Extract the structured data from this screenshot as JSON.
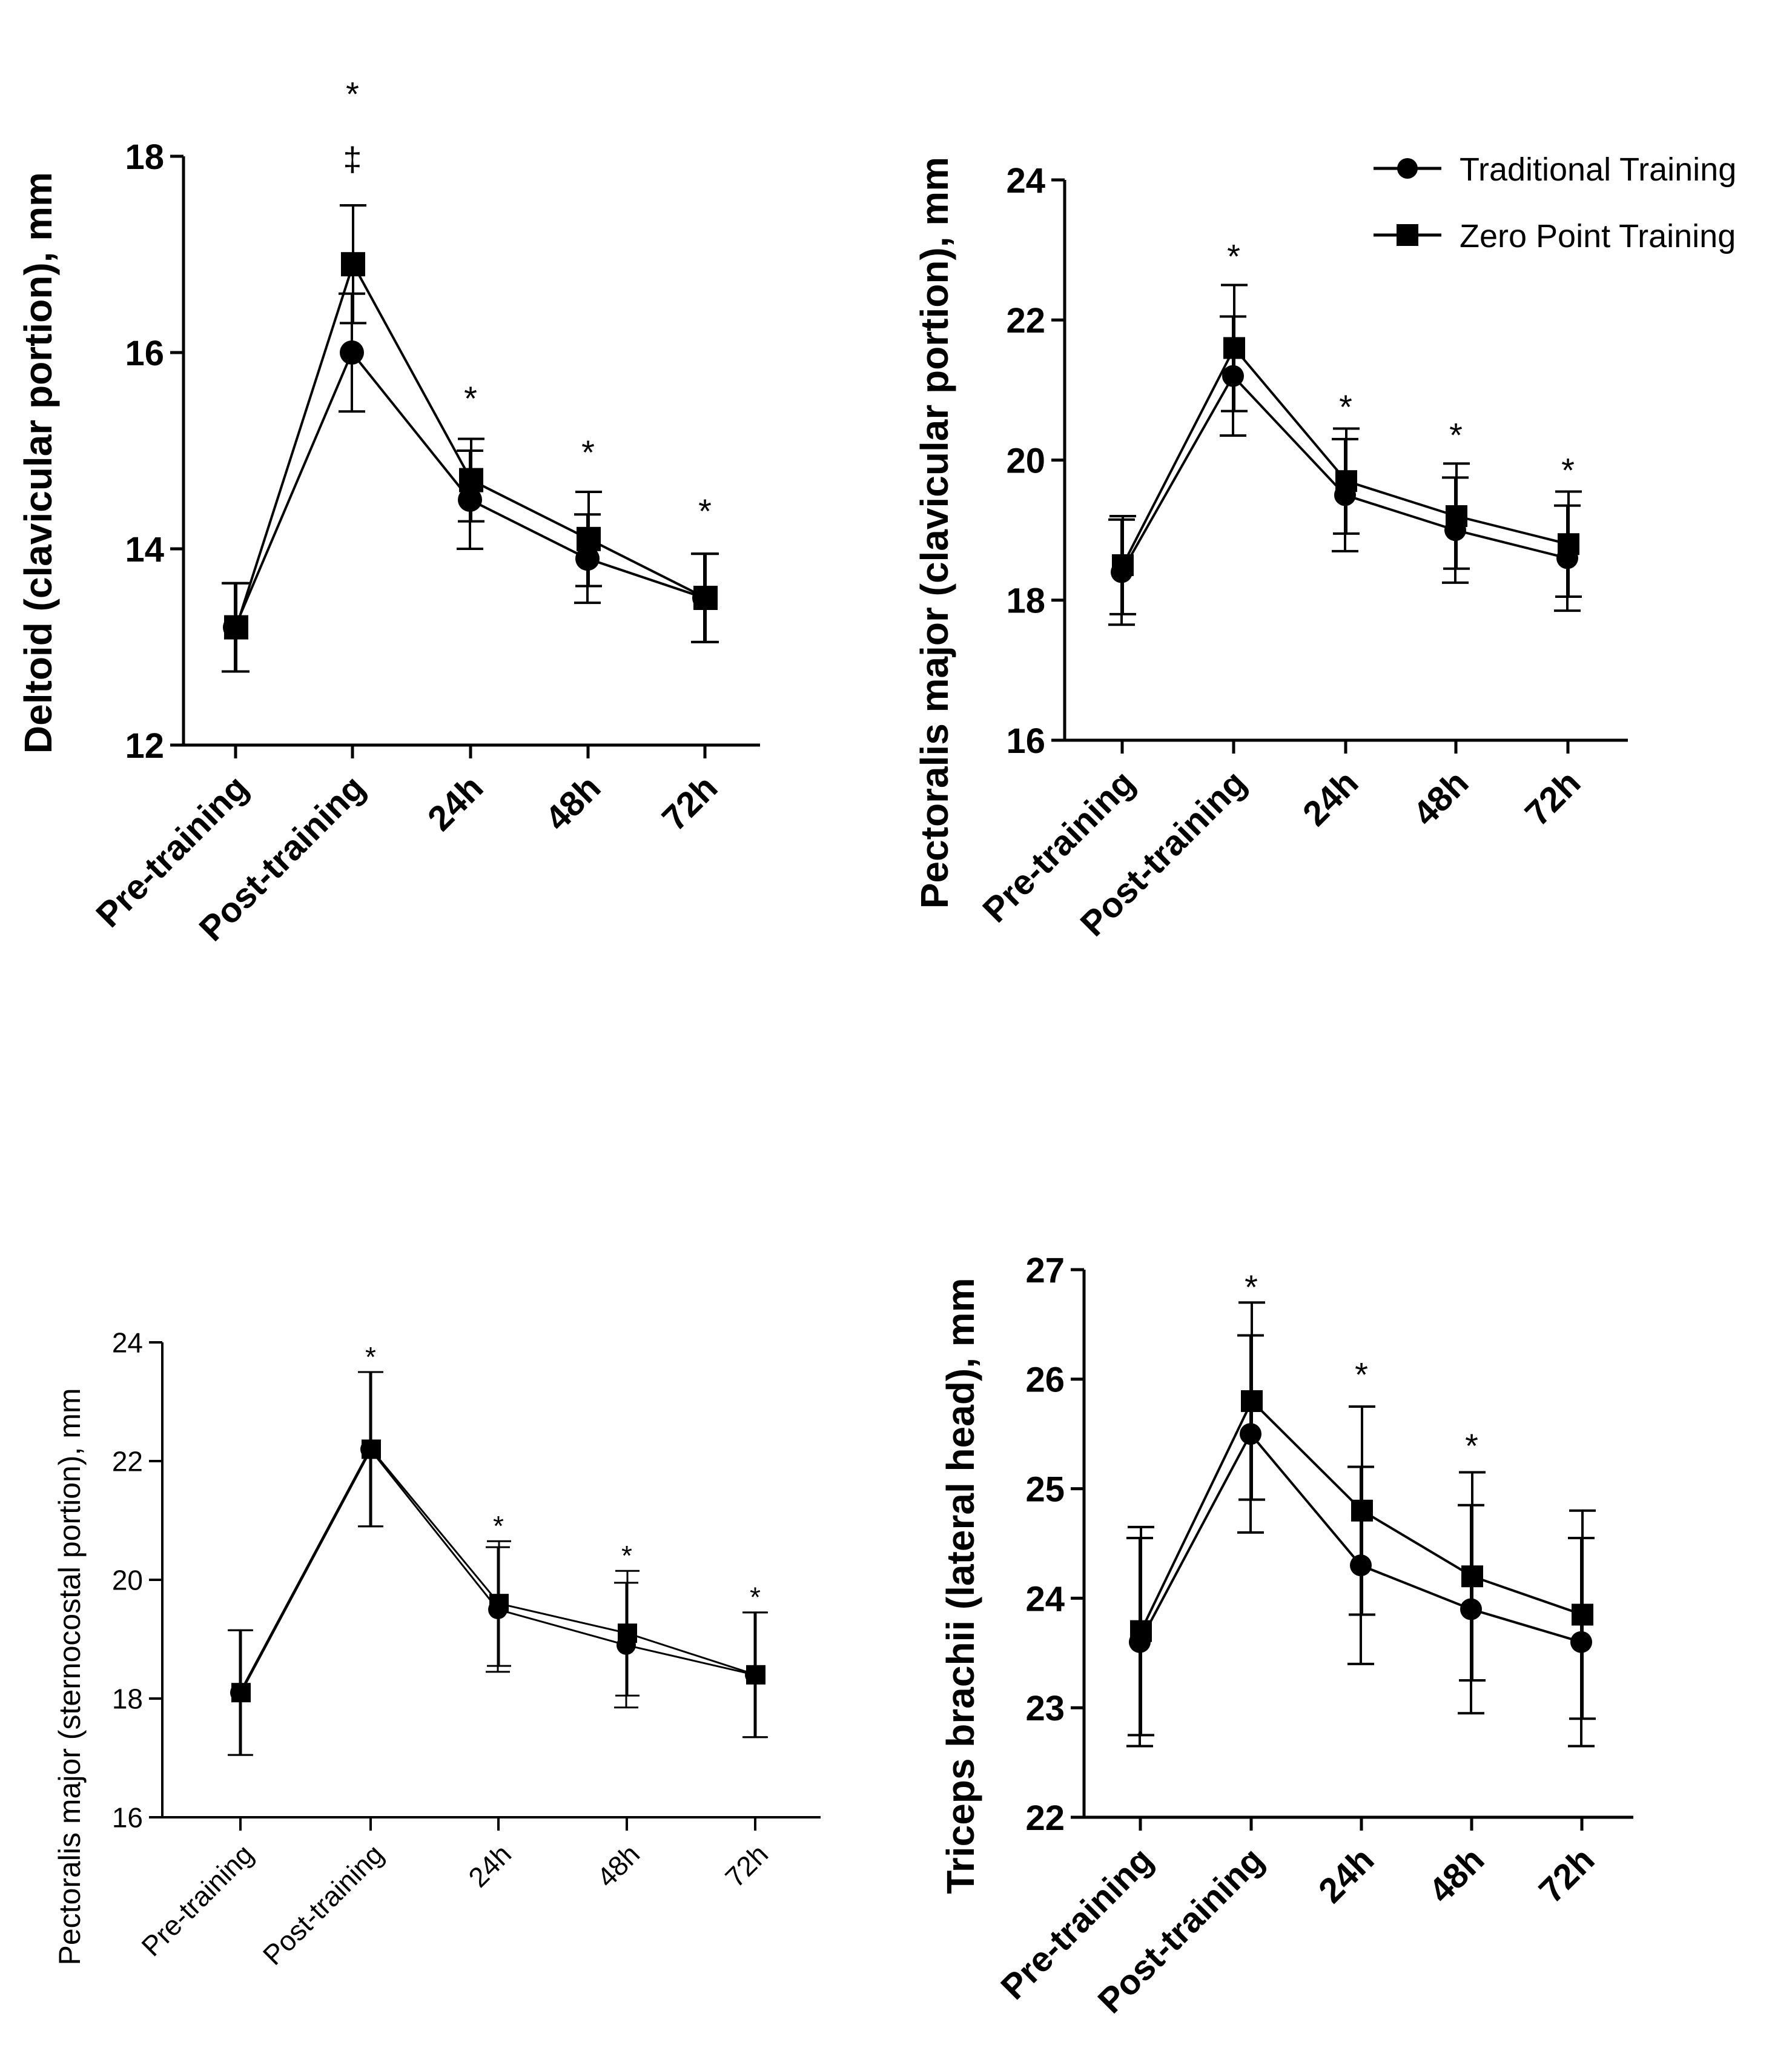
{
  "legend": {
    "series": [
      "Traditional Training",
      "Zero Point Training"
    ],
    "markers": [
      "circle",
      "square"
    ]
  },
  "chart_data": [
    {
      "type": "line",
      "ylabel": "Deltoid (clavicular portion), mm",
      "categories": [
        "Pre-training",
        "Post-training",
        "24h",
        "48h",
        "72h"
      ],
      "ylim": [
        12,
        18
      ],
      "yticks": [
        12,
        14,
        16,
        18
      ],
      "ytick_labels": [
        "12",
        "14",
        "16",
        "18"
      ],
      "series": [
        {
          "name": "Traditional Training",
          "marker": "circle",
          "values": [
            13.2,
            16.0,
            14.5,
            13.9,
            13.5
          ],
          "error": [
            0.45,
            0.6,
            0.5,
            0.45,
            0.45
          ]
        },
        {
          "name": "Zero Point Training",
          "marker": "square",
          "values": [
            13.2,
            16.9,
            14.7,
            14.1,
            13.5
          ],
          "error": [
            0.45,
            0.6,
            0.42,
            0.48,
            0.45
          ]
        }
      ],
      "annotations": [
        {
          "category": "Post-training",
          "text": "‡",
          "value": 18.0
        },
        {
          "category": "Post-training",
          "text": "*",
          "value": 18.7
        },
        {
          "category": "24h",
          "text": "*",
          "value": 15.6
        },
        {
          "category": "48h",
          "text": "*",
          "value": 15.05
        },
        {
          "category": "72h",
          "text": "*",
          "value": 14.45
        }
      ]
    },
    {
      "type": "line",
      "ylabel": "Pectoralis major (clavicular portion), mm",
      "categories": [
        "Pre-training",
        "Post-training",
        "24h",
        "48h",
        "72h"
      ],
      "ylim": [
        16,
        24
      ],
      "yticks": [
        16,
        18,
        20,
        22,
        24
      ],
      "ytick_labels": [
        "16",
        "18",
        "20",
        "22",
        "24"
      ],
      "series": [
        {
          "name": "Traditional Training",
          "marker": "circle",
          "values": [
            18.4,
            21.2,
            19.5,
            19.0,
            18.6
          ],
          "error": [
            0.75,
            0.85,
            0.8,
            0.75,
            0.75
          ]
        },
        {
          "name": "Zero Point Training",
          "marker": "square",
          "values": [
            18.5,
            21.6,
            19.7,
            19.2,
            18.8
          ],
          "error": [
            0.7,
            0.9,
            0.75,
            0.75,
            0.75
          ]
        }
      ],
      "annotations": [
        {
          "category": "Post-training",
          "text": "*",
          "value": 23.0
        },
        {
          "category": "24h",
          "text": "*",
          "value": 20.85
        },
        {
          "category": "48h",
          "text": "*",
          "value": 20.45
        },
        {
          "category": "72h",
          "text": "*",
          "value": 19.95
        }
      ]
    },
    {
      "type": "line",
      "ylabel": "Pectoralis major (sternocostal portion), mm",
      "categories": [
        "Pre-training",
        "Post-training",
        "24h",
        "48h",
        "72h"
      ],
      "ylim": [
        16,
        24
      ],
      "yticks": [
        16,
        18,
        20,
        22,
        24
      ],
      "ytick_labels": [
        "16",
        "18",
        "20",
        "22",
        "24"
      ],
      "series": [
        {
          "name": "Traditional Training",
          "marker": "circle",
          "values": [
            18.1,
            22.2,
            19.5,
            18.9,
            18.4
          ],
          "error": [
            1.05,
            1.3,
            1.05,
            1.05,
            1.05
          ]
        },
        {
          "name": "Zero Point Training",
          "marker": "square",
          "values": [
            18.1,
            22.2,
            19.6,
            19.1,
            18.4
          ],
          "error": [
            1.05,
            1.3,
            1.05,
            1.05,
            1.05
          ]
        }
      ],
      "annotations": [
        {
          "category": "Post-training",
          "text": "*",
          "value": 23.9
        },
        {
          "category": "24h",
          "text": "*",
          "value": 21.05
        },
        {
          "category": "48h",
          "text": "*",
          "value": 20.55
        },
        {
          "category": "72h",
          "text": "*",
          "value": 19.85
        }
      ]
    },
    {
      "type": "line",
      "ylabel": "Triceps brachii (lateral head), mm",
      "categories": [
        "Pre-training",
        "Post-training",
        "24h",
        "48h",
        "72h"
      ],
      "ylim": [
        22,
        27
      ],
      "yticks": [
        22,
        23,
        24,
        25,
        26,
        27
      ],
      "ytick_labels": [
        "22",
        "23",
        "24",
        "25",
        "26",
        "27"
      ],
      "series": [
        {
          "name": "Traditional Training",
          "marker": "circle",
          "values": [
            23.6,
            25.5,
            24.3,
            23.9,
            23.6
          ],
          "error": [
            0.95,
            0.9,
            0.9,
            0.95,
            0.95
          ]
        },
        {
          "name": "Zero Point Training",
          "marker": "square",
          "values": [
            23.7,
            25.8,
            24.8,
            24.2,
            23.85
          ],
          "error": [
            0.95,
            0.9,
            0.95,
            0.95,
            0.95
          ]
        }
      ],
      "annotations": [
        {
          "category": "Post-training",
          "text": "*",
          "value": 26.9
        },
        {
          "category": "24h",
          "text": "*",
          "value": 26.1
        },
        {
          "category": "48h",
          "text": "*",
          "value": 25.45
        }
      ]
    }
  ]
}
